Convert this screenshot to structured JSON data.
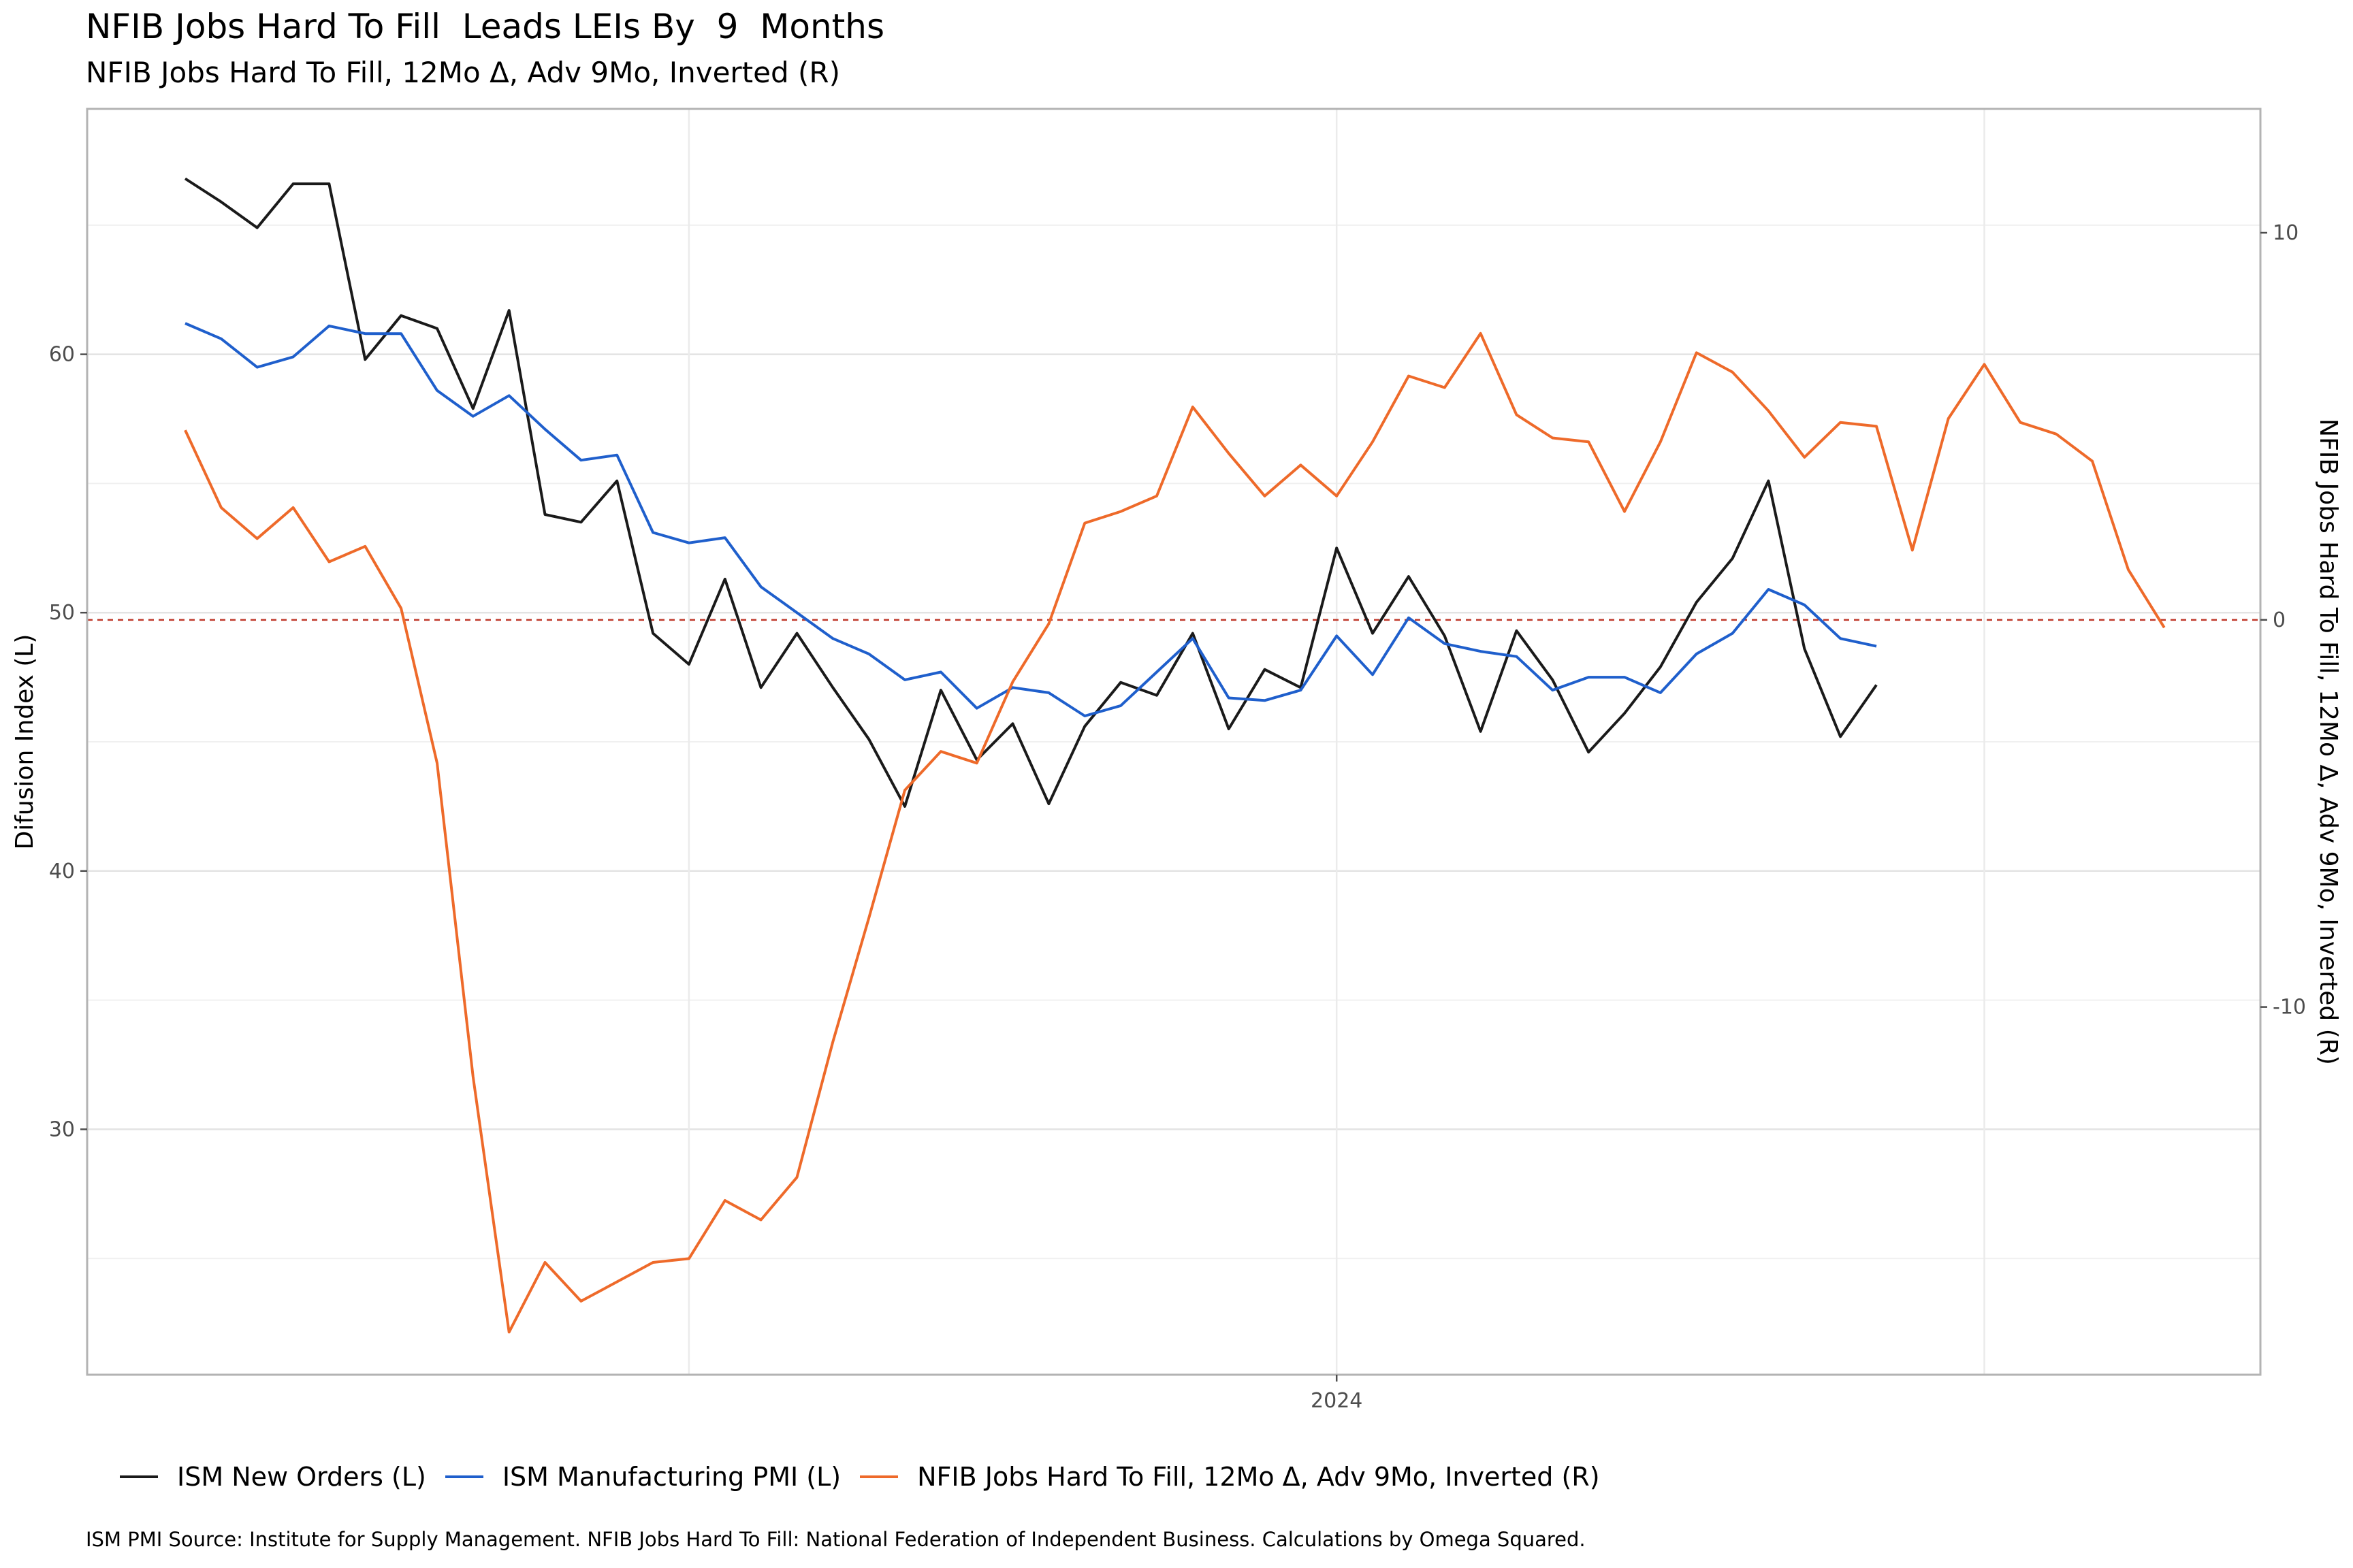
{
  "header": {
    "title": "NFIB Jobs Hard To Fill  Leads LEIs By  9  Months",
    "subtitle": "NFIB Jobs Hard To Fill, 12Mo Δ, Adv 9Mo, Inverted (R)"
  },
  "caption": "ISM PMI Source: Institute for Supply Management. NFIB Jobs Hard To Fill: National Federation of Independent Business. Calculations by Omega Squared.",
  "chart_data": {
    "type": "line",
    "title": "NFIB Jobs Hard To Fill  Leads LEIs By  9  Months",
    "subtitle": "NFIB Jobs Hard To Fill, 12Mo Δ, Adv 9Mo, Inverted (R)",
    "ylabel": "Difusion Index (L)",
    "y2label": "NFIB Jobs Hard To Fill, 12Mo Δ, Adv 9Mo, Inverted (R)",
    "x_unit": "month",
    "x_start": "2021-05",
    "x_tick_labels": [
      {
        "month_index": 32,
        "label": "2024"
      }
    ],
    "x_grid_month_indices": [
      14,
      32,
      50
    ],
    "ylim": [
      20.5,
      69.5
    ],
    "y_ticks": [
      30,
      40,
      50,
      60
    ],
    "y2lim": [
      -19.5,
      13.2
    ],
    "y2_ticks": [
      -10,
      0,
      10
    ],
    "reference_line": {
      "axis": "y2",
      "value": 0,
      "color": "#c0392b",
      "style": "dashed"
    },
    "grid": true,
    "legend_position": "bottom",
    "series": [
      {
        "name": "ISM New Orders (L)",
        "axis": "left",
        "color": "#1a1a1a",
        "start_index": 0,
        "values": [
          66.8,
          65.9,
          64.9,
          66.6,
          66.6,
          59.8,
          61.5,
          61.0,
          57.9,
          61.7,
          53.8,
          53.5,
          55.1,
          49.2,
          48.0,
          51.3,
          47.1,
          49.2,
          47.1,
          45.1,
          42.5,
          47.0,
          44.3,
          45.7,
          42.6,
          45.6,
          47.3,
          46.8,
          49.2,
          45.5,
          47.8,
          47.1,
          52.5,
          49.2,
          51.4,
          49.1,
          45.4,
          49.3,
          47.4,
          44.6,
          46.1,
          47.9,
          50.4,
          52.1,
          55.1,
          48.6,
          45.2,
          47.2
        ]
      },
      {
        "name": "ISM Manufacturing PMI (L)",
        "axis": "left",
        "color": "#1f5fcc",
        "start_index": 0,
        "values": [
          61.2,
          60.6,
          59.5,
          59.9,
          61.1,
          60.8,
          60.8,
          58.6,
          57.6,
          58.4,
          57.1,
          55.9,
          56.1,
          53.1,
          52.7,
          52.9,
          51.0,
          50.0,
          49.0,
          48.4,
          47.4,
          47.7,
          46.3,
          47.1,
          46.9,
          46.0,
          46.4,
          47.7,
          49.0,
          46.7,
          46.6,
          47.0,
          49.1,
          47.6,
          49.8,
          48.8,
          48.5,
          48.3,
          47.0,
          47.5,
          47.5,
          46.9,
          48.4,
          49.2,
          50.9,
          50.3,
          49.0,
          48.7
        ]
      },
      {
        "name": "NFIB Jobs Hard To Fill, 12Mo Δ, Adv 9Mo, Inverted (R)",
        "axis": "right",
        "color": "#ee6a2a",
        "start_index": 0,
        "values": [
          4.9,
          2.9,
          2.1,
          2.9,
          1.5,
          1.9,
          0.3,
          -3.7,
          -11.8,
          -18.4,
          -16.6,
          -17.6,
          -17.1,
          -16.6,
          -16.5,
          -15.0,
          -15.5,
          -14.4,
          -10.9,
          -7.7,
          -4.4,
          -3.4,
          -3.7,
          -1.6,
          -0.1,
          2.5,
          2.8,
          3.2,
          5.5,
          4.3,
          3.2,
          4.0,
          3.2,
          4.6,
          6.3,
          6.0,
          7.4,
          5.3,
          4.7,
          4.6,
          2.8,
          4.6,
          6.9,
          6.4,
          5.4,
          4.2,
          5.1,
          5.0,
          1.8,
          5.2,
          6.6,
          5.1,
          4.8,
          4.1,
          1.3,
          -0.2
        ]
      }
    ]
  }
}
